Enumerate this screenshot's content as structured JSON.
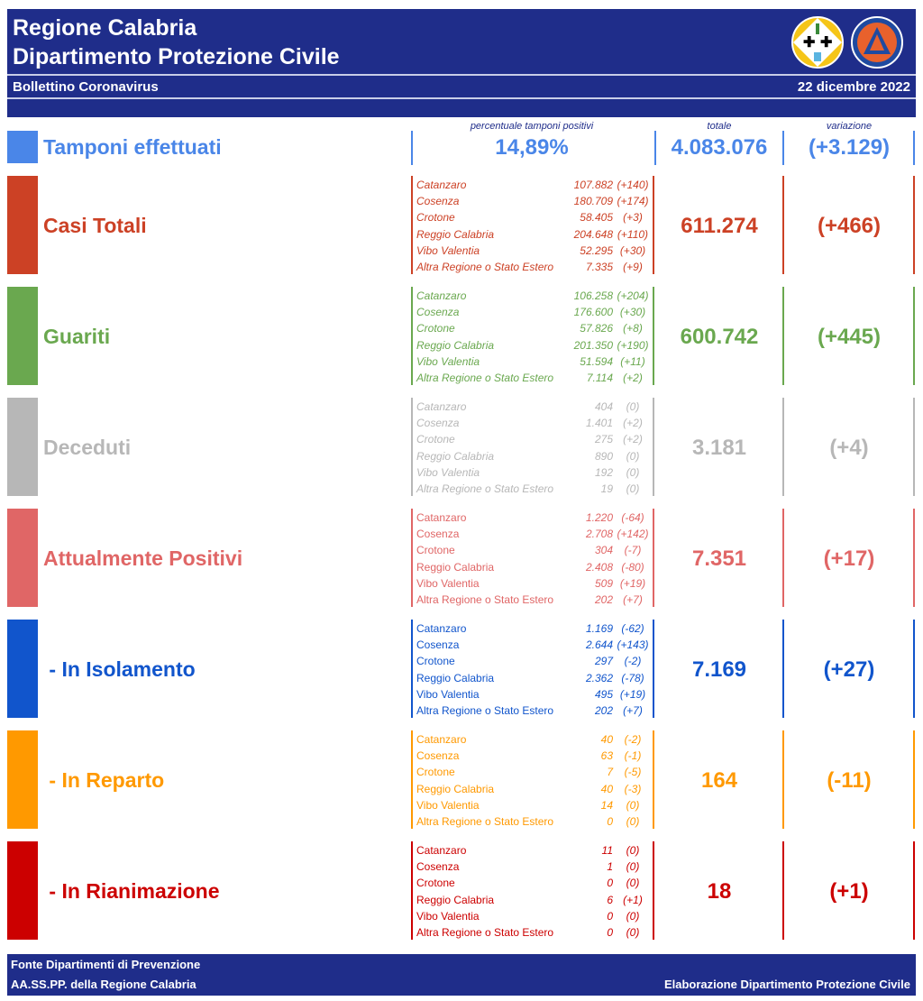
{
  "header": {
    "title1": "Regione Calabria",
    "title2": "Dipartimento Protezione Civile",
    "subtitle": "Bollettino Coronavirus",
    "date": "22 dicembre 2022",
    "logo_left": "Regione Calabria coat of arms",
    "logo_right": "Protezione Civile Regione Calabria"
  },
  "columns": {
    "percent": "percentuale tamponi positivi",
    "total": "totale",
    "variation": "variazione"
  },
  "tamponi": {
    "label": "Tamponi effettuati",
    "percent": "14,89%",
    "total": "4.083.076",
    "variation": "(+3.129)",
    "color": "#4a86e8"
  },
  "sections": [
    {
      "label": "Casi Totali",
      "total": "611.274",
      "variation": "(+466)",
      "color": "#cc4125",
      "italic": true,
      "rows": [
        [
          "Catanzaro",
          "107.882",
          "(+140)"
        ],
        [
          "Cosenza",
          "180.709",
          "(+174)"
        ],
        [
          "Crotone",
          "58.405",
          "(+3)"
        ],
        [
          "Reggio Calabria",
          "204.648",
          "(+110)"
        ],
        [
          "Vibo Valentia",
          "52.295",
          "(+30)"
        ],
        [
          "Altra Regione o Stato Estero",
          "7.335",
          "(+9)"
        ]
      ]
    },
    {
      "label": "Guariti",
      "total": "600.742",
      "variation": "(+445)",
      "color": "#6aa84f",
      "italic": true,
      "rows": [
        [
          "Catanzaro",
          "106.258",
          "(+204)"
        ],
        [
          "Cosenza",
          "176.600",
          "(+30)"
        ],
        [
          "Crotone",
          "57.826",
          "(+8)"
        ],
        [
          "Reggio Calabria",
          "201.350",
          "(+190)"
        ],
        [
          "Vibo Valentia",
          "51.594",
          "(+11)"
        ],
        [
          "Altra Regione o Stato Estero",
          "7.114",
          "(+2)"
        ]
      ]
    },
    {
      "label": "Deceduti",
      "total": "3.181",
      "variation": "(+4)",
      "color": "#b7b7b7",
      "italic": true,
      "rows": [
        [
          "Catanzaro",
          "404",
          "(0)"
        ],
        [
          "Cosenza",
          "1.401",
          "(+2)"
        ],
        [
          "Crotone",
          "275",
          "(+2)"
        ],
        [
          "Reggio Calabria",
          "890",
          "(0)"
        ],
        [
          "Vibo Valentia",
          "192",
          "(0)"
        ],
        [
          "Altra Regione o Stato Estero",
          "19",
          "(0)"
        ]
      ]
    },
    {
      "label": "Attualmente Positivi",
      "total": "7.351",
      "variation": "(+17)",
      "color": "#e06666",
      "italic": false,
      "rows": [
        [
          "Catanzaro",
          "1.220",
          "(-64)"
        ],
        [
          "Cosenza",
          "2.708",
          "(+142)"
        ],
        [
          "Crotone",
          "304",
          "(-7)"
        ],
        [
          "Reggio Calabria",
          "2.408",
          "(-80)"
        ],
        [
          "Vibo Valentia",
          "509",
          "(+19)"
        ],
        [
          "Altra Regione o Stato Estero",
          "202",
          "(+7)"
        ]
      ]
    },
    {
      "label": " - In Isolamento",
      "total": "7.169",
      "variation": "(+27)",
      "color": "#1155cc",
      "italic": false,
      "rows": [
        [
          "Catanzaro",
          "1.169",
          "(-62)"
        ],
        [
          "Cosenza",
          "2.644",
          "(+143)"
        ],
        [
          "Crotone",
          "297",
          "(-2)"
        ],
        [
          "Reggio Calabria",
          "2.362",
          "(-78)"
        ],
        [
          "Vibo Valentia",
          "495",
          "(+19)"
        ],
        [
          "Altra Regione o Stato Estero",
          "202",
          "(+7)"
        ]
      ]
    },
    {
      "label": " - In Reparto",
      "total": "164",
      "variation": "(-11)",
      "color": "#ff9900",
      "italic": false,
      "rows": [
        [
          "Catanzaro",
          "40",
          "(-2)"
        ],
        [
          "Cosenza",
          "63",
          "(-1)"
        ],
        [
          "Crotone",
          "7",
          "(-5)"
        ],
        [
          "Reggio Calabria",
          "40",
          "(-3)"
        ],
        [
          "Vibo Valentia",
          "14",
          "(0)"
        ],
        [
          "Altra Regione o Stato Estero",
          "0",
          "(0)"
        ]
      ]
    },
    {
      "label": " - In Rianimazione",
      "total": "18",
      "variation": "(+1)",
      "color": "#cc0000",
      "italic": false,
      "rows": [
        [
          "Catanzaro",
          "11",
          "(0)"
        ],
        [
          "Cosenza",
          "1",
          "(0)"
        ],
        [
          "Crotone",
          "0",
          "(0)"
        ],
        [
          "Reggio Calabria",
          "6",
          "(+1)"
        ],
        [
          "Vibo Valentia",
          "0",
          "(0)"
        ],
        [
          "Altra Regione o Stato Estero",
          "0",
          "(0)"
        ]
      ]
    }
  ],
  "footer": {
    "line1": "Fonte Dipartimenti di Prevenzione",
    "line2": "AA.SS.PP.  della Regione Calabria",
    "right": "Elaborazione Dipartimento Protezione Civile"
  }
}
